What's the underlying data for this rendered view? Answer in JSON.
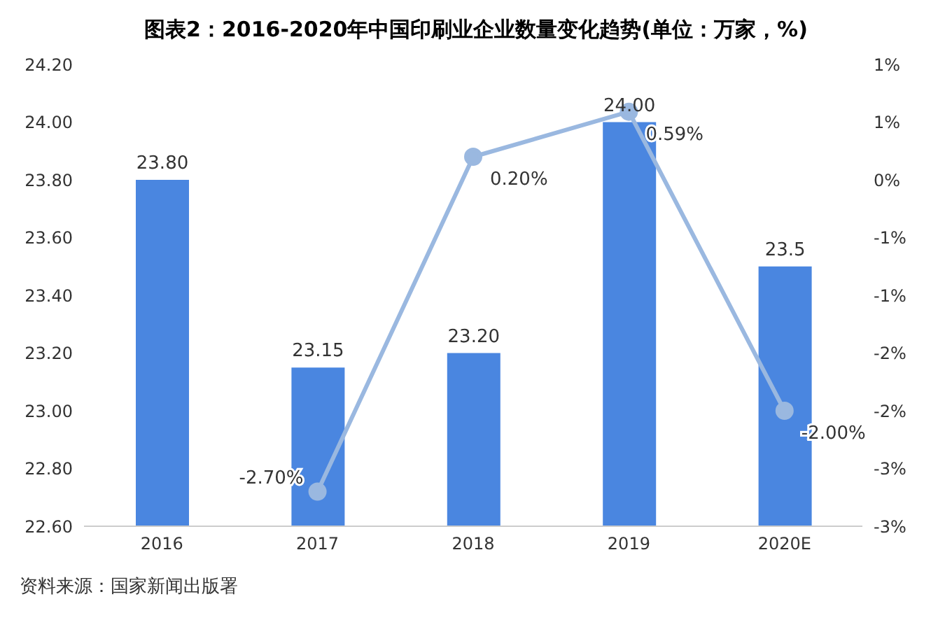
{
  "chart_data": {
    "type": "bar",
    "title": "图表2：2016-2020年中国印刷业企业数量变化趋势(单位：万家，%)",
    "categories": [
      "2016",
      "2017",
      "2018",
      "2019",
      "2020E"
    ],
    "series": [
      {
        "color": "#4a86e0",
        "values": [
          23.8,
          23.15,
          23.2,
          24.0,
          23.5
        ],
        "value_labels": [
          "23.80",
          "23.15",
          "23.20",
          "24.00",
          "23.5"
        ]
      },
      {
        "type": "line",
        "axis": "y2",
        "color": "#9ab8e0",
        "marker": "circle",
        "values": [
          null,
          -2.7,
          0.2,
          0.59,
          -2.0
        ],
        "value_labels": [
          null,
          "-2.70%",
          "0.20%",
          "0.59%",
          "-2.00%"
        ]
      }
    ],
    "ylim": [
      22.6,
      24.2
    ],
    "yticks": [
      {
        "value": 22.6,
        "label": "22.60"
      },
      {
        "value": 22.8,
        "label": "22.80"
      },
      {
        "value": 23.0,
        "label": "23.00"
      },
      {
        "value": 23.2,
        "label": "23.20"
      },
      {
        "value": 23.4,
        "label": "23.40"
      },
      {
        "value": 23.6,
        "label": "23.60"
      },
      {
        "value": 23.8,
        "label": "23.80"
      },
      {
        "value": 24.0,
        "label": "24.00"
      },
      {
        "value": 24.2,
        "label": "24.20"
      }
    ],
    "y2lim": [
      -3,
      1
    ],
    "y2ticks": [
      {
        "value": -3,
        "label": "-3%"
      },
      {
        "value": -2.5,
        "label": "-3%"
      },
      {
        "value": -2,
        "label": "-2%"
      },
      {
        "value": -1.5,
        "label": "-2%"
      },
      {
        "value": -1,
        "label": "-1%"
      },
      {
        "value": -0.5,
        "label": "-1%"
      },
      {
        "value": 0,
        "label": "0%"
      },
      {
        "value": 0.5,
        "label": "1%"
      },
      {
        "value": 1,
        "label": "1%"
      }
    ],
    "grid": false,
    "legend": false,
    "annotations": [
      "资料来源：国家新闻出版署"
    ]
  }
}
